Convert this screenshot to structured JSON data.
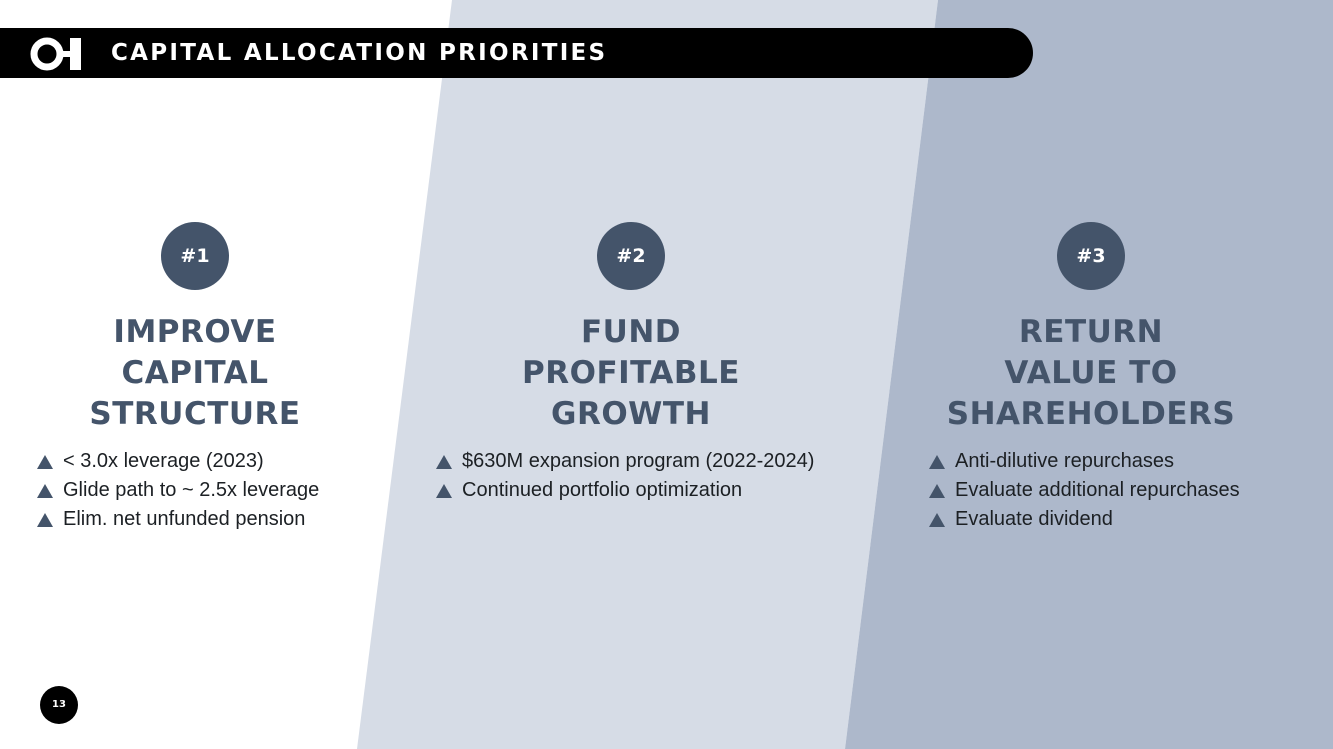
{
  "slide": {
    "title": "CAPITAL ALLOCATION PRIORITIES",
    "page_number": "13",
    "logo": "o-i-logo"
  },
  "colors": {
    "panel_light": "#d6dce6",
    "panel_dark": "#adb8cb",
    "accent": "#44546a",
    "title_bar": "#000000"
  },
  "columns": [
    {
      "badge": "#1",
      "heading": [
        "IMPROVE",
        "CAPITAL",
        "STRUCTURE"
      ],
      "bullets": [
        "< 3.0x leverage (2023)",
        "Glide path to ~ 2.5x leverage",
        "Elim. net unfunded pension"
      ]
    },
    {
      "badge": "#2",
      "heading": [
        "FUND",
        "PROFITABLE",
        "GROWTH"
      ],
      "bullets": [
        "$630M expansion program (2022-2024)",
        "Continued portfolio optimization"
      ]
    },
    {
      "badge": "#3",
      "heading": [
        "RETURN",
        "VALUE TO",
        "SHAREHOLDERS"
      ],
      "bullets": [
        "Anti-dilutive repurchases",
        "Evaluate additional repurchases",
        "Evaluate dividend"
      ]
    }
  ]
}
